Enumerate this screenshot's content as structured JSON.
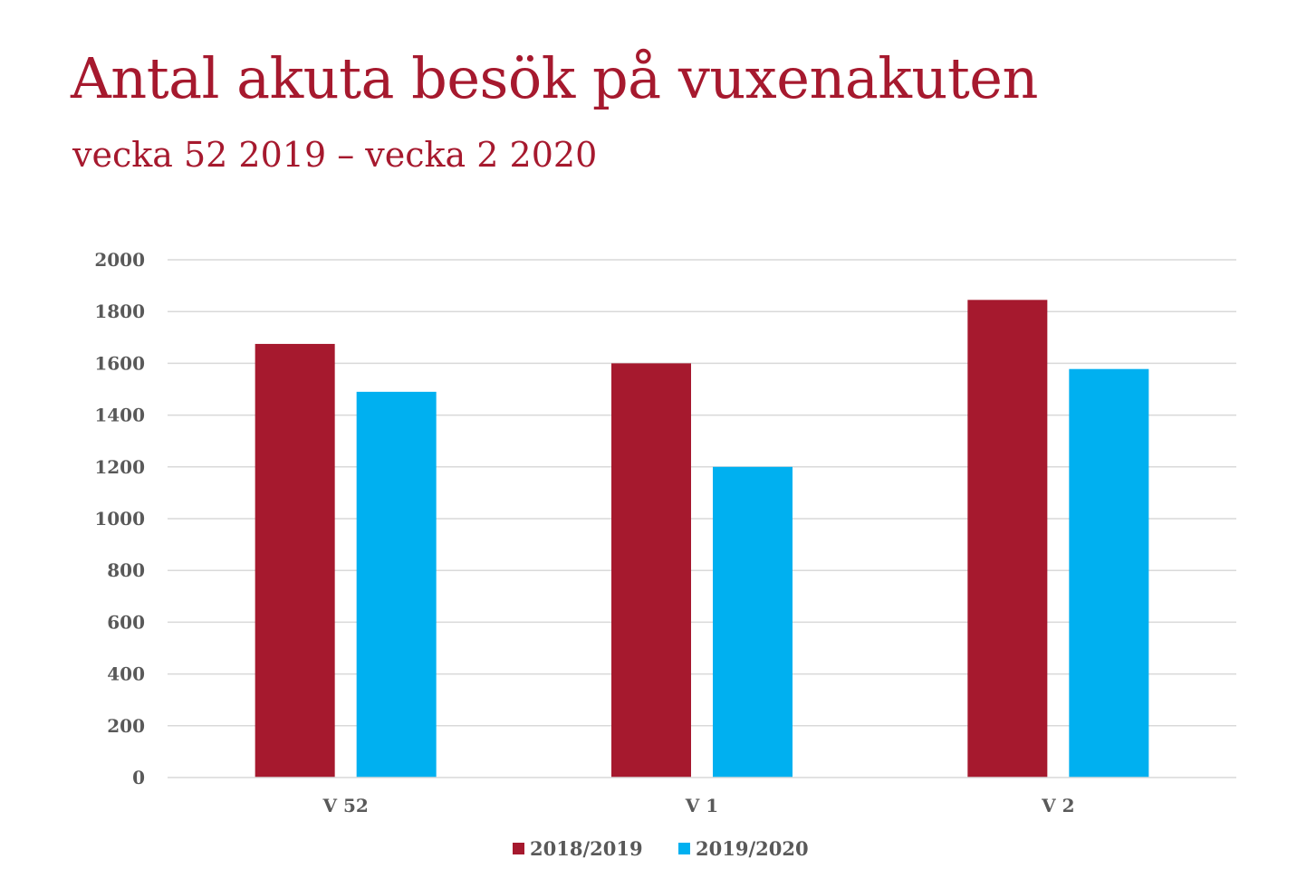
{
  "chart_data": {
    "type": "bar",
    "title": "Antal akuta besök på vuxenakuten",
    "subtitle": "vecka 52 2019 – vecka 2 2020",
    "categories": [
      "V 52",
      "V 1",
      "V 2"
    ],
    "series": [
      {
        "name": "2018/2019",
        "values": [
          1675,
          1600,
          1845
        ],
        "color": "#a6192e"
      },
      {
        "name": "2019/2020",
        "values": [
          1490,
          1200,
          1578
        ],
        "color": "#00b0f0"
      }
    ],
    "yticks": [
      "0",
      "200",
      "400",
      "600",
      "800",
      "1000",
      "1200",
      "1400",
      "1600",
      "1800",
      "2000"
    ],
    "ylim": [
      0,
      2000
    ],
    "grid": true,
    "legend": "bottom-center",
    "xlabel": "",
    "ylabel": ""
  }
}
